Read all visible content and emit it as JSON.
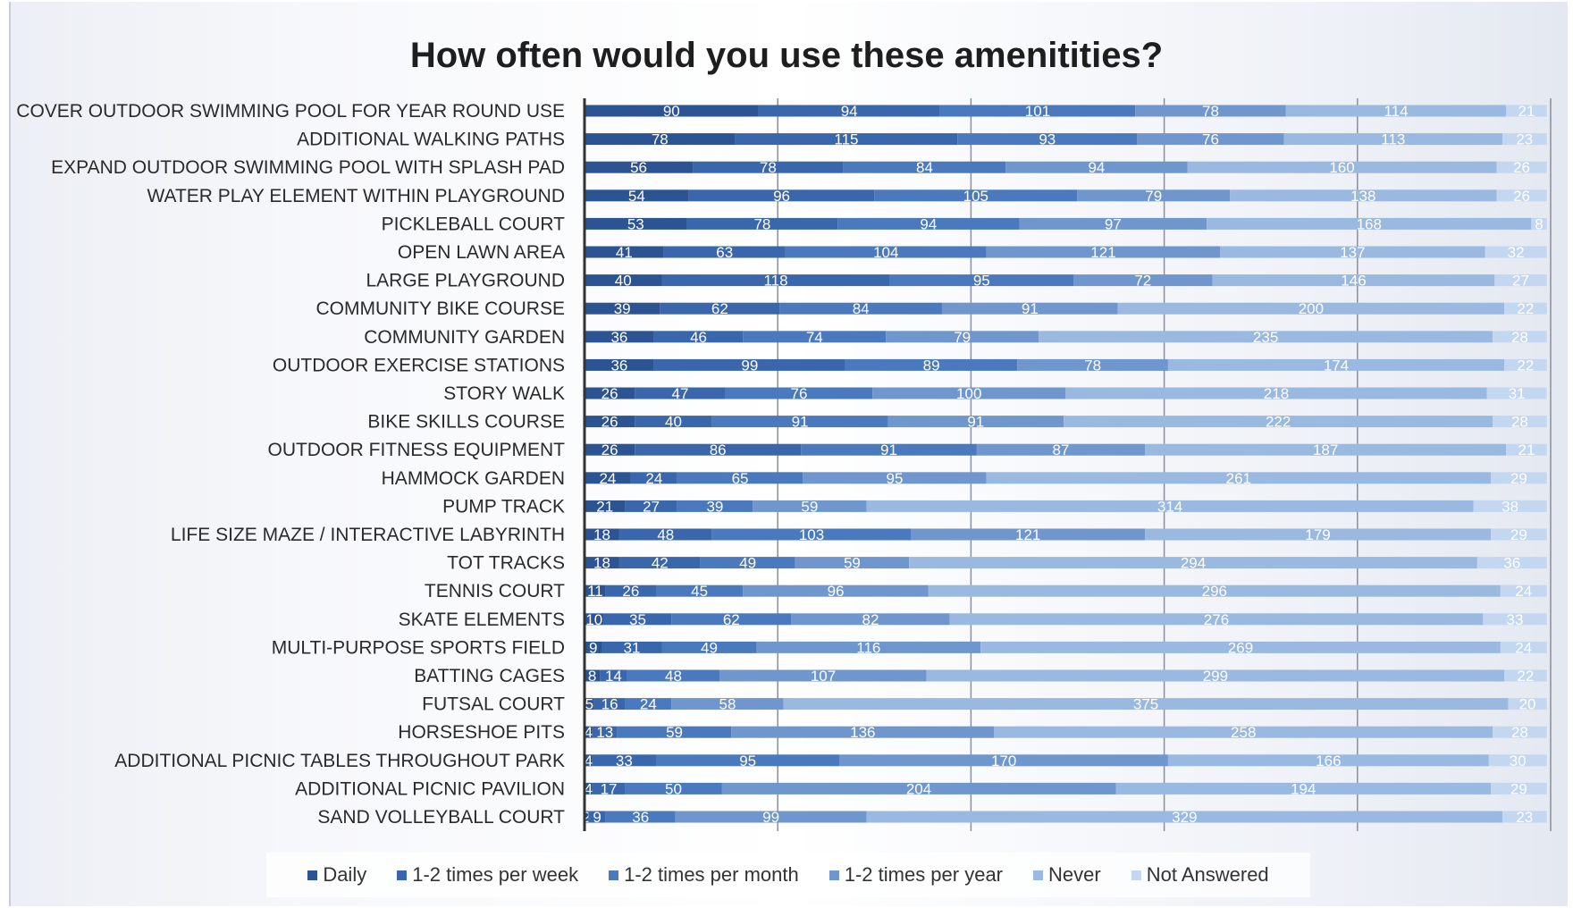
{
  "chart_data": {
    "type": "bar",
    "stacked": true,
    "orientation": "horizontal",
    "title": "How often would you use these amenitities?",
    "categories": [
      "COVER OUTDOOR SWIMMING POOL FOR YEAR ROUND USE",
      "ADDITIONAL WALKING PATHS",
      "EXPAND OUTDOOR SWIMMING POOL WITH SPLASH PAD",
      "WATER PLAY ELEMENT WITHIN PLAYGROUND",
      "PICKLEBALL COURT",
      "OPEN LAWN AREA",
      "LARGE PLAYGROUND",
      "COMMUNITY BIKE COURSE",
      "COMMUNITY GARDEN",
      "OUTDOOR EXERCISE STATIONS",
      "STORY WALK",
      "BIKE SKILLS COURSE",
      "OUTDOOR FITNESS EQUIPMENT",
      "HAMMOCK GARDEN",
      "PUMP TRACK",
      "LIFE SIZE MAZE / INTERACTIVE LABYRINTH",
      "TOT TRACKS",
      "TENNIS COURT",
      "SKATE ELEMENTS",
      "MULTI-PURPOSE SPORTS FIELD",
      "BATTING CAGES",
      "FUTSAL COURT",
      "HORSESHOE PITS",
      "ADDITIONAL PICNIC TABLES THROUGHOUT PARK",
      "ADDITIONAL PICNIC PAVILION",
      "SAND VOLLEYBALL COURT"
    ],
    "series": [
      {
        "name": "Daily",
        "color": "#2c5392",
        "values": [
          90,
          78,
          56,
          54,
          53,
          41,
          40,
          39,
          36,
          36,
          26,
          26,
          26,
          24,
          21,
          18,
          18,
          11,
          10,
          9,
          8,
          5,
          4,
          4,
          4,
          2
        ]
      },
      {
        "name": "1-2 times per week",
        "color": "#3a66ab",
        "values": [
          94,
          115,
          78,
          96,
          78,
          63,
          118,
          62,
          46,
          99,
          47,
          40,
          86,
          24,
          27,
          48,
          42,
          26,
          35,
          31,
          14,
          16,
          13,
          33,
          17,
          9
        ]
      },
      {
        "name": "1-2 times per month",
        "color": "#4a79bd",
        "values": [
          101,
          93,
          84,
          105,
          94,
          104,
          95,
          84,
          74,
          89,
          76,
          91,
          91,
          65,
          39,
          103,
          49,
          45,
          62,
          49,
          48,
          24,
          59,
          95,
          50,
          36
        ]
      },
      {
        "name": "1-2 times per year",
        "color": "#6f96cd",
        "values": [
          78,
          76,
          94,
          79,
          97,
          121,
          72,
          91,
          79,
          78,
          100,
          91,
          87,
          95,
          59,
          121,
          59,
          96,
          82,
          116,
          107,
          58,
          136,
          170,
          204,
          99
        ]
      },
      {
        "name": "Never",
        "color": "#9ab9e0",
        "values": [
          114,
          113,
          160,
          138,
          168,
          137,
          146,
          200,
          235,
          174,
          218,
          222,
          187,
          261,
          314,
          179,
          294,
          296,
          276,
          269,
          299,
          375,
          258,
          166,
          194,
          329
        ]
      },
      {
        "name": "Not Answered",
        "color": "#c3d7f0",
        "values": [
          21,
          23,
          26,
          26,
          8,
          32,
          27,
          22,
          28,
          22,
          31,
          28,
          21,
          29,
          38,
          29,
          36,
          24,
          33,
          24,
          22,
          20,
          28,
          30,
          29,
          23
        ]
      }
    ],
    "xlim": [
      0,
      500
    ],
    "grid": true,
    "legend_position": "bottom"
  }
}
